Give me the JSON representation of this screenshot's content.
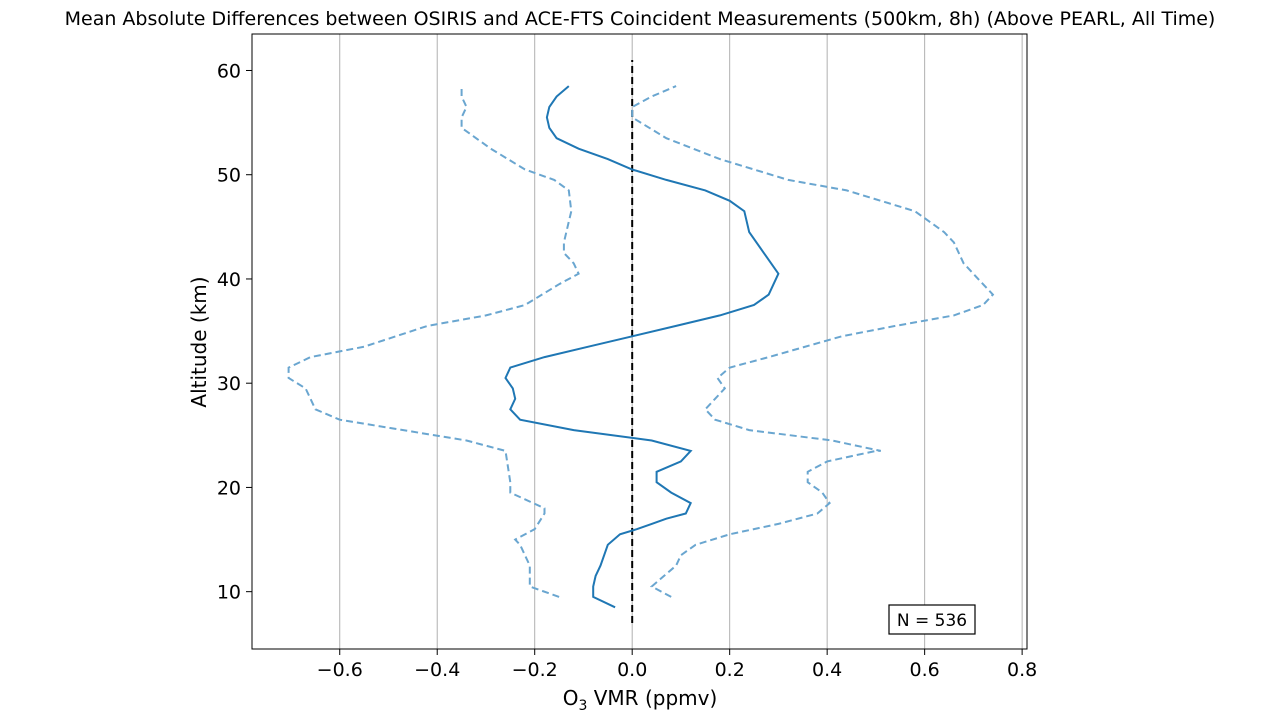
{
  "chart_data": {
    "type": "line",
    "title": "Mean Absolute Differences between OSIRIS and ACE-FTS Coincident Measurements (500km, 8h) (Above PEARL, All Time)",
    "xlabel_main": "O",
    "xlabel_sub": "3",
    "xlabel_rest": " VMR (ppmv)",
    "ylabel": "Altitude (km)",
    "xlim": [
      -0.78,
      0.81
    ],
    "ylim": [
      4.5,
      63.5
    ],
    "xticks": [
      -0.6,
      -0.4,
      -0.2,
      0.0,
      0.2,
      0.4,
      0.6,
      0.8
    ],
    "xtick_labels": [
      "−0.6",
      "−0.4",
      "−0.2",
      "0.0",
      "0.2",
      "0.4",
      "0.6",
      "0.8"
    ],
    "yticks": [
      10,
      20,
      30,
      40,
      50,
      60
    ],
    "ytick_labels": [
      "10",
      "20",
      "30",
      "40",
      "50",
      "60"
    ],
    "grid": "x",
    "colors": {
      "mean": "#1f77b4",
      "bounds": "#6aa6d0",
      "zero": "#000000"
    },
    "annotation": "N = 536",
    "annotation_position": "bottom-right",
    "zero_line": {
      "x": 0.0,
      "y": [
        7,
        61
      ]
    },
    "mean": [
      [
        -0.035,
        8.5
      ],
      [
        -0.08,
        9.5
      ],
      [
        -0.08,
        10.5
      ],
      [
        -0.075,
        11.5
      ],
      [
        -0.065,
        12.5
      ],
      [
        -0.05,
        14.5
      ],
      [
        -0.025,
        15.5
      ],
      [
        0.01,
        16
      ],
      [
        0.04,
        16.5
      ],
      [
        0.07,
        17
      ],
      [
        0.11,
        17.5
      ],
      [
        0.12,
        18.5
      ],
      [
        0.08,
        19.5
      ],
      [
        0.05,
        20.5
      ],
      [
        0.05,
        21.5
      ],
      [
        0.1,
        22.5
      ],
      [
        0.12,
        23.5
      ],
      [
        0.04,
        24.5
      ],
      [
        -0.12,
        25.5
      ],
      [
        -0.23,
        26.5
      ],
      [
        -0.25,
        27.5
      ],
      [
        -0.24,
        28.5
      ],
      [
        -0.245,
        29.5
      ],
      [
        -0.26,
        30.5
      ],
      [
        -0.25,
        31.5
      ],
      [
        -0.18,
        32.5
      ],
      [
        -0.09,
        33.5
      ],
      [
        0.0,
        34.5
      ],
      [
        0.09,
        35.5
      ],
      [
        0.18,
        36.5
      ],
      [
        0.25,
        37.5
      ],
      [
        0.28,
        38.5
      ],
      [
        0.3,
        40.5
      ],
      [
        0.27,
        42.5
      ],
      [
        0.24,
        44.5
      ],
      [
        0.23,
        46.5
      ],
      [
        0.2,
        47.5
      ],
      [
        0.15,
        48.5
      ],
      [
        0.07,
        49.5
      ],
      [
        0.0,
        50.5
      ],
      [
        -0.05,
        51.5
      ],
      [
        -0.11,
        52.5
      ],
      [
        -0.155,
        53.5
      ],
      [
        -0.17,
        54.5
      ],
      [
        -0.175,
        55.5
      ],
      [
        -0.17,
        56.5
      ],
      [
        -0.155,
        57.5
      ],
      [
        -0.13,
        58.5
      ]
    ],
    "lower": [
      [
        -0.15,
        9.5
      ],
      [
        -0.21,
        10.5
      ],
      [
        -0.21,
        11.5
      ],
      [
        -0.21,
        12.5
      ],
      [
        -0.23,
        14.5
      ],
      [
        -0.24,
        15
      ],
      [
        -0.2,
        16
      ],
      [
        -0.18,
        17.5
      ],
      [
        -0.18,
        18
      ],
      [
        -0.25,
        19.5
      ],
      [
        -0.25,
        20.5
      ],
      [
        -0.26,
        23.5
      ],
      [
        -0.34,
        24.5
      ],
      [
        -0.6,
        26.5
      ],
      [
        -0.65,
        27.5
      ],
      [
        -0.67,
        29.5
      ],
      [
        -0.705,
        30.5
      ],
      [
        -0.705,
        31.5
      ],
      [
        -0.66,
        32.5
      ],
      [
        -0.55,
        33.5
      ],
      [
        -0.42,
        35.5
      ],
      [
        -0.3,
        36.5
      ],
      [
        -0.22,
        37.5
      ],
      [
        -0.15,
        39.5
      ],
      [
        -0.11,
        40.5
      ],
      [
        -0.12,
        41.5
      ],
      [
        -0.14,
        42.5
      ],
      [
        -0.14,
        43.5
      ],
      [
        -0.13,
        45.5
      ],
      [
        -0.125,
        46.5
      ],
      [
        -0.13,
        48.5
      ],
      [
        -0.16,
        49.5
      ],
      [
        -0.22,
        50.5
      ],
      [
        -0.29,
        52.5
      ],
      [
        -0.35,
        54.5
      ],
      [
        -0.35,
        55.5
      ],
      [
        -0.34,
        56.5
      ],
      [
        -0.35,
        57.5
      ],
      [
        -0.35,
        58.5
      ]
    ],
    "upper": [
      [
        0.08,
        9.5
      ],
      [
        0.04,
        10.5
      ],
      [
        0.065,
        11.5
      ],
      [
        0.09,
        12.5
      ],
      [
        0.1,
        13.5
      ],
      [
        0.13,
        14.5
      ],
      [
        0.2,
        15.5
      ],
      [
        0.3,
        16.5
      ],
      [
        0.38,
        17.5
      ],
      [
        0.405,
        18.5
      ],
      [
        0.39,
        19.5
      ],
      [
        0.36,
        20.5
      ],
      [
        0.36,
        21.5
      ],
      [
        0.4,
        22.5
      ],
      [
        0.5,
        23.5
      ],
      [
        0.51,
        23.5
      ],
      [
        0.41,
        24.5
      ],
      [
        0.24,
        25.5
      ],
      [
        0.17,
        26.5
      ],
      [
        0.15,
        27.5
      ],
      [
        0.17,
        28.5
      ],
      [
        0.19,
        29.5
      ],
      [
        0.175,
        30.5
      ],
      [
        0.2,
        31.5
      ],
      [
        0.28,
        32.5
      ],
      [
        0.43,
        34.5
      ],
      [
        0.54,
        35.5
      ],
      [
        0.66,
        36.5
      ],
      [
        0.72,
        37.5
      ],
      [
        0.74,
        38.5
      ],
      [
        0.72,
        39.5
      ],
      [
        0.68,
        41.5
      ],
      [
        0.66,
        43.5
      ],
      [
        0.64,
        44.5
      ],
      [
        0.58,
        46.5
      ],
      [
        0.44,
        48.5
      ],
      [
        0.32,
        49.5
      ],
      [
        0.18,
        51.5
      ],
      [
        0.07,
        53.5
      ],
      [
        0.0,
        55.5
      ],
      [
        0.0,
        56.5
      ],
      [
        0.04,
        57.5
      ],
      [
        0.09,
        58.5
      ]
    ]
  }
}
